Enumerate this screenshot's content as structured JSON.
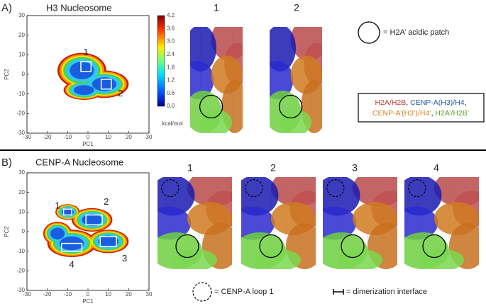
{
  "panel_a": {
    "label": "A)",
    "title": "H3 Nucleosome",
    "x_label": "PC1",
    "y_label": "PC2",
    "xticks": [
      -30,
      -20,
      -10,
      0,
      10,
      20,
      30
    ],
    "yticks": [
      -30,
      -20,
      -10,
      0,
      10,
      20,
      30
    ],
    "colorbar_ticks": [
      "4.2",
      "3.6",
      "3.0",
      "2.4",
      "1.8",
      "1.2",
      "0.6",
      "0.0"
    ],
    "colorbar_unit": "kcal/mol",
    "state_labels": [
      "1",
      "2"
    ],
    "structure_labels": [
      "1",
      "2"
    ],
    "patch_legend": "= H2A’ acidic patch",
    "chain_legend": [
      [
        {
          "text": "H2A/H2B",
          "color": "#c0392b"
        },
        {
          "text": ", ",
          "color": "#000000"
        },
        {
          "text": "CENP-A(H3)/H4",
          "color": "#2c5aa0"
        },
        {
          "text": ",",
          "color": "#000000"
        }
      ],
      [
        {
          "text": "CENP-A’(H3’)/H4’",
          "color": "#d4821e"
        },
        {
          "text": ", ",
          "color": "#000000"
        },
        {
          "text": "H2A’/H2B’",
          "color": "#5aa02c"
        }
      ]
    ]
  },
  "panel_b": {
    "label": "B)",
    "title": "CENP-A Nucleosome",
    "x_label": "PC1",
    "y_label": "PC2",
    "xticks": [
      -30,
      -20,
      -10,
      0,
      10,
      20,
      30
    ],
    "yticks": [
      -30,
      -20,
      -10,
      0,
      10,
      20,
      30
    ],
    "state_labels": [
      "1",
      "2",
      "3",
      "4"
    ],
    "structure_labels": [
      "1",
      "2",
      "3",
      "4"
    ],
    "loop_legend": "= CENP-A loop 1",
    "interface_legend": "= dimerization interface"
  }
}
